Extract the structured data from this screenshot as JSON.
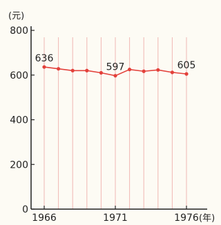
{
  "chart_data": {
    "type": "line",
    "title": "",
    "ylabel": "(元)",
    "xlabel": "(年)",
    "ylim": [
      0,
      800
    ],
    "yticks": [
      0,
      200,
      400,
      600,
      800
    ],
    "x": [
      1966,
      1967,
      1968,
      1969,
      1970,
      1971,
      1972,
      1973,
      1974,
      1975,
      1976
    ],
    "xticks": [
      1966,
      1971,
      1976
    ],
    "series": [
      {
        "values": [
          636,
          628,
          620,
          620,
          610,
          597,
          625,
          617,
          623,
          612,
          605
        ]
      }
    ],
    "data_labels": [
      {
        "x": 1966,
        "text": "636"
      },
      {
        "x": 1971,
        "text": "597"
      },
      {
        "x": 1976,
        "text": "605"
      }
    ],
    "grid": "vertical",
    "colors": {
      "line": "#e3413b",
      "grid": "#f0b7b3",
      "axis": "#222222",
      "background": "#fdfbf4"
    }
  }
}
